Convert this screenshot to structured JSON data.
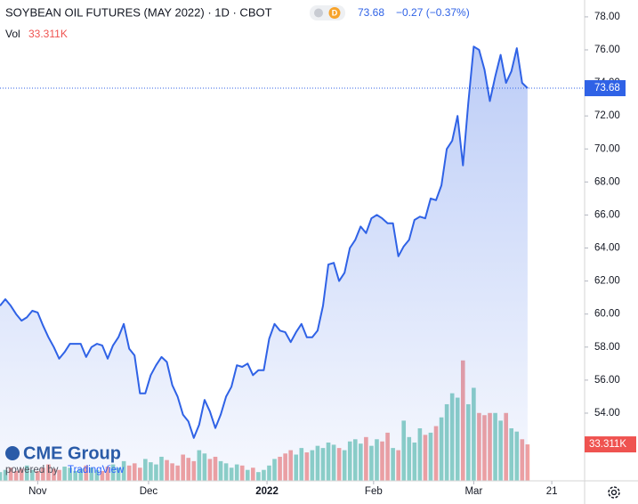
{
  "chart_data": {
    "type": "line",
    "title": "SOYBEAN OIL FUTURES (MAY 2022) · 1D · CBOT",
    "badge": "D",
    "change": "−0.27 (−0.37%)",
    "color": "#2f62e6",
    "values": [
      60.5,
      60.9,
      60.5,
      60.0,
      59.6,
      59.8,
      60.2,
      60.1,
      59.3,
      58.6,
      58.0,
      57.3,
      57.7,
      58.2,
      58.2,
      58.2,
      57.4,
      58.0,
      58.2,
      58.1,
      57.3,
      58.1,
      58.6,
      59.4,
      57.9,
      57.5,
      55.2,
      55.2,
      56.3,
      56.9,
      57.4,
      57.1,
      55.7,
      55.0,
      53.9,
      53.5,
      52.5,
      53.3,
      54.8,
      54.1,
      53.1,
      53.9,
      55.0,
      55.6,
      56.9,
      56.8,
      57.0,
      56.3,
      56.6,
      56.6,
      58.5,
      59.4,
      59.0,
      58.9,
      58.3,
      58.9,
      59.4,
      58.6,
      58.6,
      59.0,
      60.5,
      63.0,
      63.1,
      62.0,
      62.5,
      64.0,
      64.5,
      65.3,
      64.9,
      65.8,
      66.0,
      65.8,
      65.5,
      65.5,
      63.5,
      64.1,
      64.5,
      65.7,
      65.9,
      65.8,
      67.0,
      66.9,
      67.8,
      70.0,
      70.5,
      72.0,
      69.0,
      72.8,
      76.2,
      76.0,
      74.8,
      72.9,
      74.4,
      75.7,
      74.0,
      74.7,
      76.1,
      74.0,
      73.68
    ],
    "xlim": [
      0,
      108.6
    ],
    "xticks": [
      {
        "value": 7,
        "label": "Nov"
      },
      {
        "value": 27.6,
        "label": "Dec"
      },
      {
        "value": 49.6,
        "label": "2022"
      },
      {
        "value": 69.4,
        "label": "Feb"
      },
      {
        "value": 88,
        "label": "Mar"
      },
      {
        "value": 102.5,
        "label": "21"
      }
    ],
    "ylim": [
      49.9,
      79.02
    ],
    "yticks": [
      {
        "value": 54,
        "label": "54.00"
      },
      {
        "value": 56,
        "label": "56.00"
      },
      {
        "value": 58,
        "label": "58.00"
      },
      {
        "value": 60,
        "label": "60.00"
      },
      {
        "value": 62,
        "label": "62.00"
      },
      {
        "value": 64,
        "label": "64.00"
      },
      {
        "value": 66,
        "label": "66.00"
      },
      {
        "value": 68,
        "label": "68.00"
      },
      {
        "value": 70,
        "label": "70.00"
      },
      {
        "value": 72,
        "label": "72.00"
      },
      {
        "value": 74,
        "label": "74.00"
      },
      {
        "value": 76,
        "label": "76.00"
      },
      {
        "value": 78,
        "label": "78.00"
      }
    ],
    "volume": {
      "name": "Vol",
      "up_color": "#8ed2c6",
      "down_color": "#f3a2a0",
      "lim": [
        0,
        170
      ],
      "values": [
        8,
        10,
        12,
        9,
        11,
        14,
        10,
        9,
        12,
        15,
        11,
        10,
        13,
        12,
        9,
        11,
        14,
        12,
        10,
        9,
        13,
        15,
        12,
        18,
        14,
        16,
        12,
        20,
        17,
        15,
        22,
        19,
        16,
        14,
        24,
        21,
        18,
        28,
        25,
        20,
        22,
        18,
        16,
        12,
        15,
        14,
        10,
        12,
        8,
        10,
        14,
        20,
        22,
        25,
        28,
        24,
        30,
        26,
        28,
        32,
        30,
        35,
        33,
        30,
        28,
        36,
        38,
        34,
        40,
        32,
        38,
        36,
        44,
        30,
        28,
        55,
        40,
        35,
        48,
        42,
        44,
        50,
        58,
        70,
        80,
        76,
        110,
        70,
        85,
        62,
        60,
        62,
        62,
        55,
        62,
        48,
        45,
        38,
        33.311
      ],
      "value_labels": [
        null,
        null,
        null,
        null,
        null,
        null,
        null,
        null,
        null,
        null,
        null,
        null,
        null,
        null,
        null,
        null,
        null,
        null,
        null,
        null,
        null,
        null,
        null,
        null,
        null,
        null,
        null,
        null,
        null,
        null,
        null,
        null,
        null,
        null,
        null,
        null,
        null,
        null,
        null,
        null,
        null,
        null,
        null,
        null,
        null,
        null,
        null,
        null,
        null,
        null,
        null,
        null,
        null,
        null,
        null,
        null,
        null,
        null,
        null,
        null,
        null,
        null,
        null,
        null,
        null,
        null,
        null,
        null,
        null,
        null,
        null,
        null,
        null,
        null,
        null,
        null,
        null,
        null,
        null,
        null,
        null,
        null,
        null,
        null,
        null,
        null,
        null,
        null,
        null,
        null,
        null,
        null,
        null,
        null,
        null,
        null,
        null,
        null,
        "33.311K"
      ]
    },
    "logo": "CME Group",
    "powered_by": "powered by",
    "powered_brand": "TradingView"
  }
}
